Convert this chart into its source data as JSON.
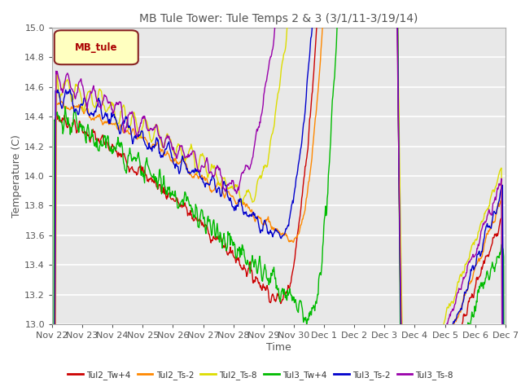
{
  "title": "MB Tule Tower: Tule Temps 2 & 3 (3/1/11-3/19/14)",
  "xlabel": "Time",
  "ylabel": "Temperature (C)",
  "ylim": [
    13.0,
    15.0
  ],
  "yticks": [
    13.0,
    13.2,
    13.4,
    13.6,
    13.8,
    14.0,
    14.2,
    14.4,
    14.6,
    14.8,
    15.0
  ],
  "legend_label": "MB_tule",
  "legend_bg": "#FFFFC0",
  "legend_border": "#882222",
  "bg_color": "#E8E8E8",
  "series_colors": {
    "Tul2_Tw+4": "#CC0000",
    "Tul2_Ts-2": "#FF8800",
    "Tul2_Ts-8": "#DDDD00",
    "Tul3_Tw+4": "#00BB00",
    "Tul3_Ts-2": "#0000CC",
    "Tul3_Ts-8": "#9900AA"
  },
  "xtick_labels": [
    "Nov 22",
    "Nov 23",
    "Nov 24",
    "Nov 25",
    "Nov 26",
    "Nov 27",
    "Nov 28",
    "Nov 29",
    "Nov 30",
    "Dec 1",
    "Dec 2",
    "Dec 3",
    "Dec 4",
    "Dec 5",
    "Dec 6",
    "Dec 7"
  ],
  "n_points": 800
}
